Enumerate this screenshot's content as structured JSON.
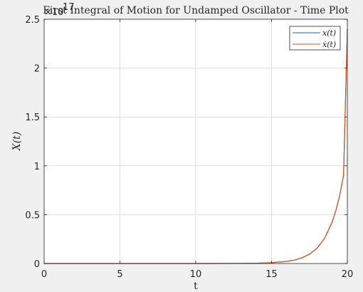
{
  "chart_data": {
    "type": "line",
    "title": "First Integral of Motion for Undamped Oscillator - Time Plot",
    "exponent_label": "×10",
    "exponent_power": "17",
    "xlabel": "t",
    "ylabel": "X(t)",
    "xlim": [
      0,
      20
    ],
    "ylim": [
      0,
      2.5
    ],
    "y_scale_factor": "1e17",
    "xticks": [
      0,
      5,
      10,
      15,
      20
    ],
    "xtick_labels": [
      "0",
      "5",
      "10",
      "15",
      "20"
    ],
    "yticks": [
      0,
      0.5,
      1,
      1.5,
      2,
      2.5
    ],
    "ytick_labels": [
      "0",
      "0.5",
      "1",
      "1.5",
      "2",
      "2.5"
    ],
    "grid": true,
    "legend_position": "top-right",
    "series": [
      {
        "name": "x(t)",
        "color": "#0072BD",
        "x": [
          0,
          10,
          13,
          14,
          15,
          16,
          16.5,
          17,
          17.5,
          18,
          18.5,
          19,
          19.25,
          19.5,
          19.75,
          20
        ],
        "y": [
          0,
          0,
          0.001,
          0.003,
          0.008,
          0.022,
          0.035,
          0.058,
          0.095,
          0.156,
          0.258,
          0.425,
          0.545,
          0.7,
          0.9,
          2.4
        ]
      },
      {
        "name": "ẋ(t)",
        "color": "#D95319",
        "x": [
          0,
          10,
          13,
          14,
          15,
          16,
          16.5,
          17,
          17.5,
          18,
          18.5,
          19,
          19.25,
          19.5,
          19.75,
          20
        ],
        "y": [
          0,
          0,
          0.001,
          0.003,
          0.008,
          0.022,
          0.035,
          0.058,
          0.095,
          0.156,
          0.258,
          0.425,
          0.545,
          0.7,
          0.9,
          2.4
        ]
      }
    ]
  }
}
